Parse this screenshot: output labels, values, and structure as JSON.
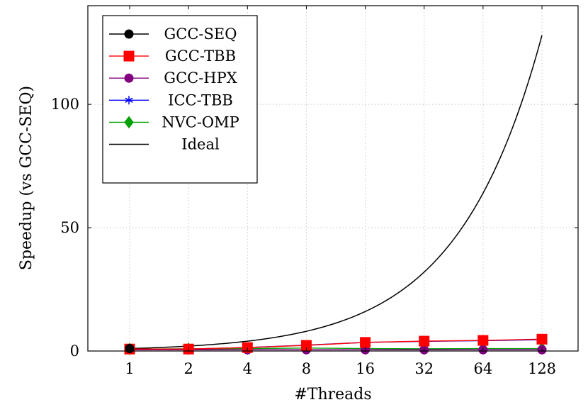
{
  "chart_data": {
    "type": "line",
    "title": "",
    "xlabel": "#Threads",
    "ylabel": "Speedup (vs GCC-SEQ)",
    "x": [
      1,
      2,
      4,
      8,
      16,
      32,
      64,
      128
    ],
    "x_scale": "log2",
    "x_ticks": [
      "1",
      "2",
      "4",
      "8",
      "16",
      "32",
      "64",
      "128"
    ],
    "ylim": [
      0,
      140
    ],
    "y_ticks": [
      "0",
      "50",
      "100"
    ],
    "y_tick_values": [
      0,
      50,
      100
    ],
    "grid": "dotted",
    "legend_position": "top-left",
    "series": [
      {
        "name": "GCC-SEQ",
        "color": "#000000",
        "marker": "circle",
        "values": [
          1,
          null,
          null,
          null,
          null,
          null,
          null,
          null
        ]
      },
      {
        "name": "GCC-TBB",
        "color": "#ff0000",
        "marker": "square",
        "values": [
          0.8,
          0.8,
          1.4,
          2.3,
          3.5,
          4.0,
          4.3,
          4.8
        ]
      },
      {
        "name": "GCC-HPX",
        "color": "#800080",
        "marker": "circle",
        "values": [
          0.5,
          0.5,
          0.5,
          0.5,
          0.5,
          0.5,
          0.5,
          0.5
        ]
      },
      {
        "name": "ICC-TBB",
        "color": "#0000ff",
        "marker": "star",
        "values": [
          0.7,
          0.8,
          1.4,
          2.4,
          3.5,
          3.9,
          4.2,
          4.6
        ]
      },
      {
        "name": "NVC-OMP",
        "color": "#00a000",
        "marker": "diamond",
        "values": [
          0.8,
          0.9,
          1.0,
          1.2,
          1.0,
          0.9,
          1.0,
          1.0
        ]
      },
      {
        "name": "Ideal",
        "color": "#000000",
        "marker": "none",
        "values": [
          1,
          2,
          4,
          8,
          16,
          32,
          64,
          128
        ]
      }
    ]
  }
}
